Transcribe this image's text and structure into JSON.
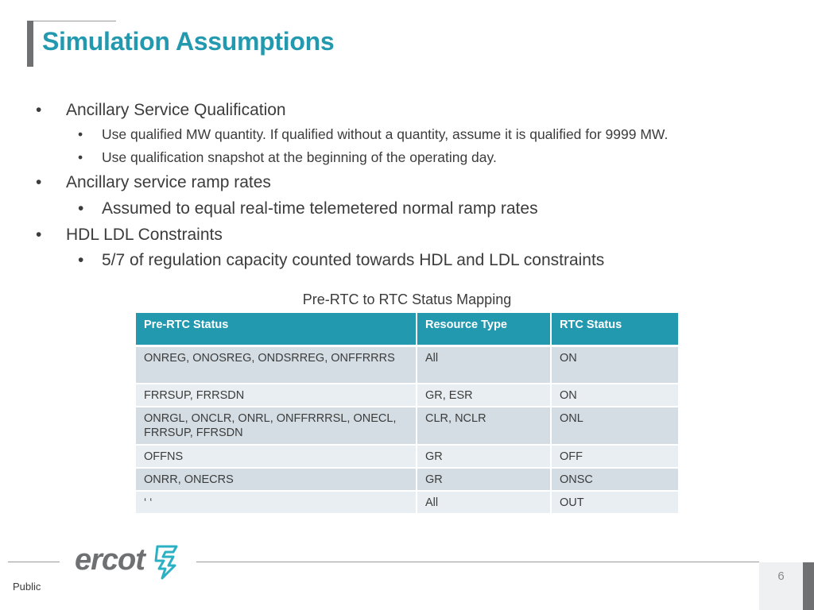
{
  "slide": {
    "title": "Simulation Assumptions",
    "page_number": "6",
    "classification": "Public",
    "logo_text": "ercot",
    "accent_color": "#2399b0"
  },
  "bullets": [
    {
      "text": "Ancillary Service Qualification",
      "children": [
        "Use qualified MW quantity. If qualified without a quantity, assume it is qualified for 9999 MW.",
        "Use qualification snapshot at the beginning of the operating day."
      ]
    },
    {
      "text": "Ancillary service ramp rates",
      "children": [
        "Assumed to equal real-time telemetered normal ramp rates"
      ]
    },
    {
      "text": "HDL LDL Constraints",
      "children": [
        "5/7 of regulation capacity counted towards HDL and LDL constraints"
      ]
    }
  ],
  "table": {
    "caption": "Pre-RTC to RTC Status Mapping",
    "headers": [
      "Pre-RTC Status",
      "Resource Type",
      "RTC Status"
    ],
    "rows": [
      [
        "ONREG, ONOSREG, ONDSRREG, ONFFRRRS",
        "All",
        "ON"
      ],
      [
        "FRRSUP, FRRSDN",
        "GR, ESR",
        "ON"
      ],
      [
        "ONRGL, ONCLR, ONRL, ONFFRRRSL, ONECL, FRRSUP, FFRSDN",
        "CLR, NCLR",
        "ONL"
      ],
      [
        "OFFNS",
        "GR",
        "OFF"
      ],
      [
        "ONRR, ONECRS",
        "GR",
        "ONSC"
      ],
      [
        "‘ ‘",
        "All",
        "OUT"
      ]
    ]
  }
}
